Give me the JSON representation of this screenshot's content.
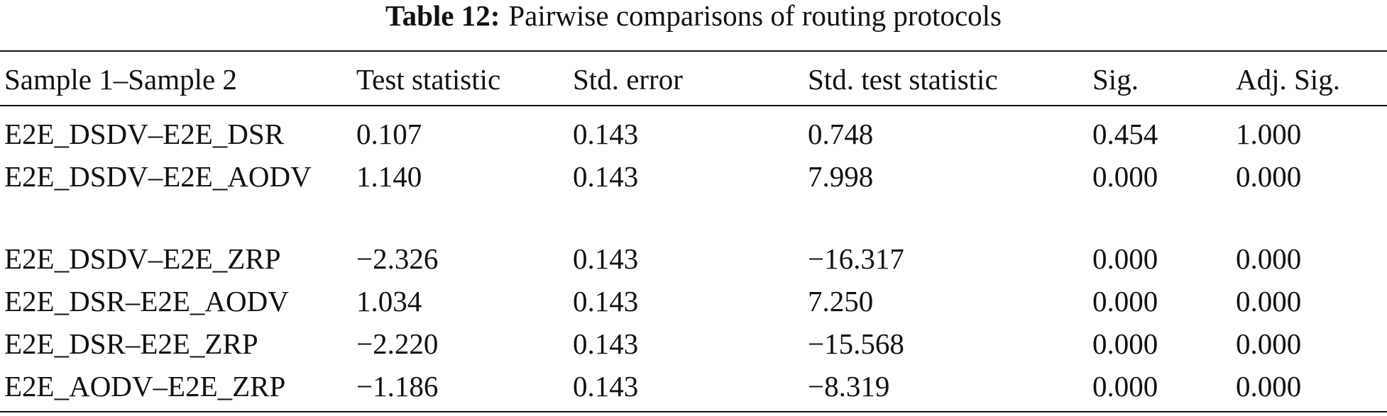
{
  "table": {
    "title_label": "Table 12:",
    "title": "Pairwise comparisons of routing protocols",
    "header": [
      "Sample 1–Sample 2",
      "Test statistic",
      "Std. error",
      "Std. test statistic",
      "Sig.",
      "Adj. Sig."
    ],
    "rows": [
      [
        "E2E_DSDV–E2E_DSR",
        "0.107",
        "0.143",
        "0.748",
        "0.454",
        "1.000"
      ],
      [
        "E2E_DSDV–E2E_AODV",
        "1.140",
        "0.143",
        "7.998",
        "0.000",
        "0.000"
      ],
      [
        "E2E_DSDV–E2E_ZRP",
        "−2.326",
        "0.143",
        "−16.317",
        "0.000",
        "0.000"
      ],
      [
        "E2E_DSR–E2E_AODV",
        "1.034",
        "0.143",
        "7.250",
        "0.000",
        "0.000"
      ],
      [
        "E2E_DSR–E2E_ZRP",
        "−2.220",
        "0.143",
        "−15.568",
        "0.000",
        "0.000"
      ],
      [
        "E2E_AODV–E2E_ZRP",
        "−1.186",
        "0.143",
        "−8.319",
        "0.000",
        "0.000"
      ]
    ]
  }
}
